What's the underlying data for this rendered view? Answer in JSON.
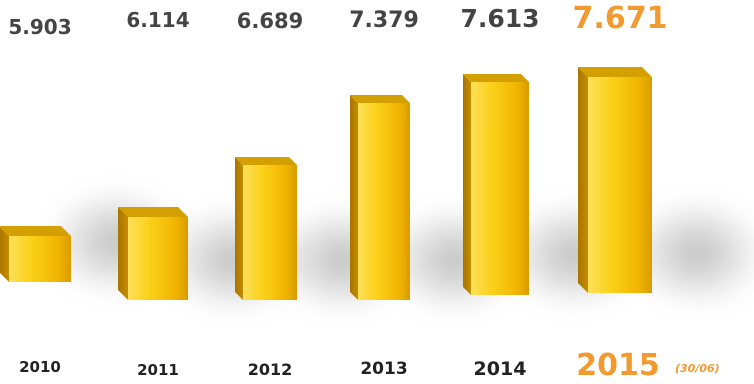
{
  "chart_data": {
    "type": "bar",
    "categories": [
      "2010",
      "2011",
      "2012",
      "2013",
      "2014",
      "2015"
    ],
    "value_labels": [
      "5.903",
      "6.114",
      "6.689",
      "7.379",
      "7.613",
      "7.671"
    ],
    "values": [
      5903,
      6114,
      6689,
      7379,
      7613,
      7671
    ],
    "highlight_index": 5,
    "highlight_note": "(30/06)",
    "title": "",
    "xlabel": "",
    "ylabel": "",
    "grid": false,
    "legend": "none",
    "colors": {
      "bar_front": "#f7c20c",
      "bar_side": "#b88500",
      "bar_top": "#d49f00",
      "label": "#444444",
      "year": "#222222",
      "highlight": "#f29a2e"
    }
  }
}
